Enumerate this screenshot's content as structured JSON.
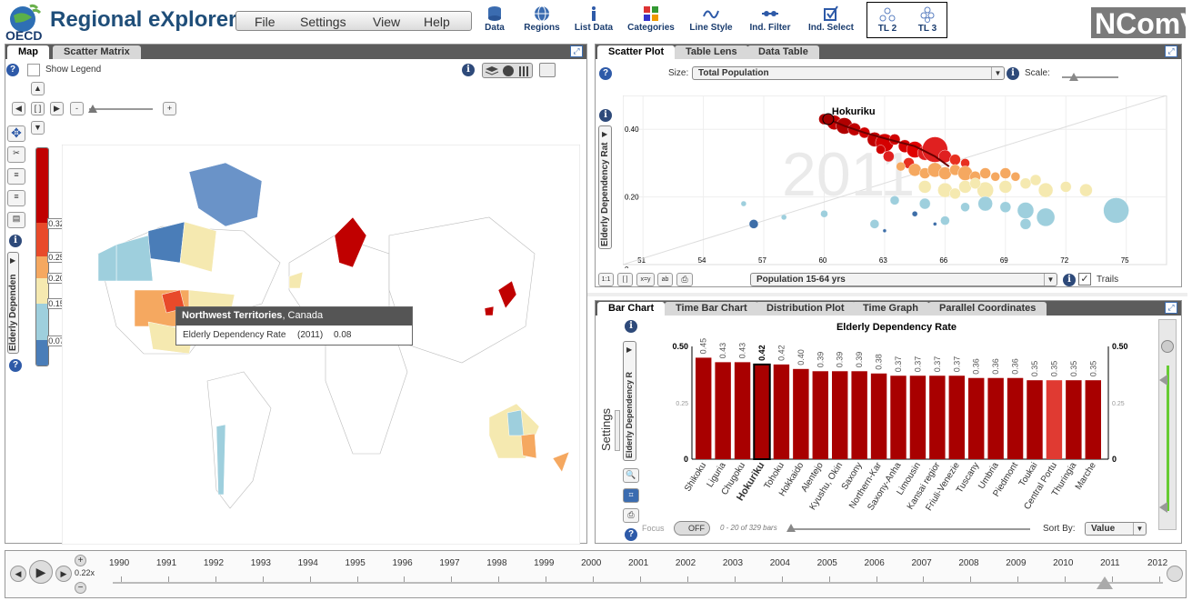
{
  "app": {
    "title": "Regional eXplorer",
    "logo_text": "OECD",
    "brand": "NComVA"
  },
  "menu": [
    "File",
    "Settings",
    "View",
    "Help"
  ],
  "toolbar": [
    {
      "label": "Data",
      "icon": "database-icon"
    },
    {
      "label": "Regions",
      "icon": "globe-icon"
    },
    {
      "label": "List Data",
      "icon": "info-icon"
    },
    {
      "label": "Categories",
      "icon": "categories-icon"
    },
    {
      "label": "Line Style",
      "icon": "line-style-icon"
    },
    {
      "label": "Ind. Filter",
      "icon": "filter-icon"
    },
    {
      "label": "Ind. Select",
      "icon": "checkbox-icon"
    },
    {
      "label": "TL 2",
      "icon": "tl2-icon"
    },
    {
      "label": "TL 3",
      "icon": "tl3-icon"
    }
  ],
  "map_panel": {
    "tabs": [
      "Map",
      "Scatter Matrix"
    ],
    "show_legend": "Show Legend",
    "indicator": "Elderly Dependen",
    "legend_ticks": [
      "0.32",
      "0.25",
      "0.20",
      "0.15",
      "0.07"
    ],
    "tooltip": {
      "region": "Northwest Territories",
      "country": ", Canada",
      "indicator": "Elderly Dependency Rate",
      "year": "(2011)",
      "value": "0.08"
    },
    "colors": [
      "#c00000",
      "#e84a2a",
      "#f5a860",
      "#f5e9b0",
      "#9ecfdd",
      "#4a7db8"
    ]
  },
  "scatter_panel": {
    "tabs": [
      "Scatter Plot",
      "Table Lens",
      "Data Table"
    ],
    "size_label": "Size:",
    "size_value": "Total Population",
    "scale_label": "Scale:",
    "y_axis_label": "Elderly Dependency Rat",
    "x_axis_value": "Population 15-64 yrs",
    "trails_label": "Trails",
    "year_watermark": "2011",
    "highlight": "Hokuriku",
    "buttons": [
      "1:1",
      "[ ]",
      "x=y",
      "ab"
    ]
  },
  "bar_panel": {
    "tabs": [
      "Bar Chart",
      "Time Bar Chart",
      "Distribution Plot",
      "Time Graph",
      "Parallel Coordinates"
    ],
    "settings_label": "Settings",
    "y_axis_label": "Elderly Dependency R",
    "focus_label": "Focus",
    "focus_toggle": "OFF",
    "bars_status": "0 - 20 of 329 bars",
    "sort_label": "Sort By:",
    "sort_value": "Value"
  },
  "timeline": {
    "speed": "0.22x",
    "years": [
      "1990",
      "1991",
      "1992",
      "1993",
      "1994",
      "1995",
      "1996",
      "1997",
      "1998",
      "1999",
      "2000",
      "2001",
      "2002",
      "2003",
      "2004",
      "2005",
      "2006",
      "2007",
      "2008",
      "2009",
      "2010",
      "2011",
      "2012"
    ],
    "current": "2011"
  },
  "chart_data": [
    {
      "type": "bar",
      "title": "Elderly Dependency Rate",
      "ylim": [
        0,
        0.5
      ],
      "y_ticks": [
        "0",
        "0.25",
        "0.50"
      ],
      "categories": [
        "Shikoku",
        "Liguria",
        "Chugoku",
        "Hokuriku",
        "Tohoku",
        "Hokkaido",
        "Alentejo",
        "Kyushu, Okin",
        "Saxony",
        "Northern-Kar",
        "Saxony-Anha",
        "Limousin",
        "Kansai regior",
        "Friuli-Venezie",
        "Tuscany",
        "Umbria",
        "Piedmont",
        "Toukai",
        "Central Portu",
        "Thuringia",
        "Marche"
      ],
      "values": [
        0.45,
        0.43,
        0.43,
        0.42,
        0.42,
        0.4,
        0.39,
        0.39,
        0.39,
        0.38,
        0.37,
        0.37,
        0.37,
        0.37,
        0.36,
        0.36,
        0.36,
        0.35,
        0.35,
        0.35,
        0.35
      ],
      "labels": [
        "0.45",
        "0.43",
        "0.43",
        "0.42",
        "0.42",
        "0.40",
        "0.39",
        "0.39",
        "0.39",
        "0.38",
        "0.37",
        "0.37",
        "0.37",
        "0.37",
        "0.36",
        "0.36",
        "0.36",
        "0.35",
        "0.35",
        "0.35",
        "0.35"
      ],
      "highlight": "Hokuriku",
      "color": "#a80000",
      "alt_color": "#e03a32"
    },
    {
      "type": "scatter",
      "xlabel": "Population 15-64 yrs",
      "ylabel": "Elderly Dependency Rat",
      "x_ticks": [
        "51",
        "54",
        "57",
        "60",
        "63",
        "66",
        "69",
        "72",
        "75"
      ],
      "y_ticks": [
        "0",
        "0.20",
        "0.40"
      ],
      "xlim": [
        50,
        77
      ],
      "ylim": [
        0,
        0.5
      ],
      "trail": [
        [
          60.2,
          0.43
        ],
        [
          61.0,
          0.41
        ],
        [
          62.0,
          0.39
        ],
        [
          63.2,
          0.37
        ],
        [
          64.5,
          0.35
        ],
        [
          65.5,
          0.32
        ],
        [
          66.2,
          0.29
        ]
      ],
      "points": [
        {
          "x": 60,
          "y": 0.43,
          "s": 6,
          "c": "#b00000"
        },
        {
          "x": 60.5,
          "y": 0.42,
          "s": 8,
          "c": "#c00000"
        },
        {
          "x": 61,
          "y": 0.41,
          "s": 9,
          "c": "#b00000"
        },
        {
          "x": 61.5,
          "y": 0.4,
          "s": 7,
          "c": "#c00000"
        },
        {
          "x": 62,
          "y": 0.39,
          "s": 6,
          "c": "#d00000"
        },
        {
          "x": 62.5,
          "y": 0.37,
          "s": 8,
          "c": "#c00000"
        },
        {
          "x": 63,
          "y": 0.36,
          "s": 10,
          "c": "#d40000"
        },
        {
          "x": 63.5,
          "y": 0.37,
          "s": 6,
          "c": "#d00000"
        },
        {
          "x": 64,
          "y": 0.35,
          "s": 7,
          "c": "#d40000"
        },
        {
          "x": 64.5,
          "y": 0.34,
          "s": 9,
          "c": "#e00000"
        },
        {
          "x": 65,
          "y": 0.33,
          "s": 8,
          "c": "#e02020"
        },
        {
          "x": 65.5,
          "y": 0.34,
          "s": 14,
          "c": "#e02020"
        },
        {
          "x": 66,
          "y": 0.32,
          "s": 7,
          "c": "#e02020"
        },
        {
          "x": 66.5,
          "y": 0.31,
          "s": 6,
          "c": "#e83020"
        },
        {
          "x": 67,
          "y": 0.3,
          "s": 5,
          "c": "#e83020"
        },
        {
          "x": 63.2,
          "y": 0.32,
          "s": 6,
          "c": "#e02020"
        },
        {
          "x": 62.8,
          "y": 0.34,
          "s": 5,
          "c": "#d00000"
        },
        {
          "x": 64.2,
          "y": 0.3,
          "s": 6,
          "c": "#e83020"
        },
        {
          "x": 64.5,
          "y": 0.28,
          "s": 7,
          "c": "#f5a860"
        },
        {
          "x": 65,
          "y": 0.27,
          "s": 6,
          "c": "#f5a860"
        },
        {
          "x": 65.5,
          "y": 0.28,
          "s": 8,
          "c": "#f5a860"
        },
        {
          "x": 66,
          "y": 0.27,
          "s": 7,
          "c": "#f5a860"
        },
        {
          "x": 66.5,
          "y": 0.28,
          "s": 6,
          "c": "#f5a860"
        },
        {
          "x": 67,
          "y": 0.27,
          "s": 8,
          "c": "#f5a860"
        },
        {
          "x": 67.5,
          "y": 0.26,
          "s": 6,
          "c": "#f5a860"
        },
        {
          "x": 68,
          "y": 0.27,
          "s": 6,
          "c": "#f5a860"
        },
        {
          "x": 68.5,
          "y": 0.26,
          "s": 5,
          "c": "#f5a860"
        },
        {
          "x": 69,
          "y": 0.27,
          "s": 6,
          "c": "#f5a860"
        },
        {
          "x": 69.5,
          "y": 0.26,
          "s": 5,
          "c": "#f5a860"
        },
        {
          "x": 63.8,
          "y": 0.29,
          "s": 5,
          "c": "#f5a860"
        },
        {
          "x": 65,
          "y": 0.23,
          "s": 7,
          "c": "#f5e9b0"
        },
        {
          "x": 66,
          "y": 0.22,
          "s": 8,
          "c": "#f5e9b0"
        },
        {
          "x": 67,
          "y": 0.23,
          "s": 7,
          "c": "#f5e9b0"
        },
        {
          "x": 68,
          "y": 0.22,
          "s": 9,
          "c": "#f5e9b0"
        },
        {
          "x": 69,
          "y": 0.23,
          "s": 7,
          "c": "#f5e9b0"
        },
        {
          "x": 70,
          "y": 0.24,
          "s": 6,
          "c": "#f5e9b0"
        },
        {
          "x": 71,
          "y": 0.22,
          "s": 8,
          "c": "#f5e9b0"
        },
        {
          "x": 72,
          "y": 0.23,
          "s": 6,
          "c": "#f5e9b0"
        },
        {
          "x": 73,
          "y": 0.22,
          "s": 7,
          "c": "#f5e9b0"
        },
        {
          "x": 70.5,
          "y": 0.25,
          "s": 6,
          "c": "#f5e9b0"
        },
        {
          "x": 67.5,
          "y": 0.24,
          "s": 6,
          "c": "#f5e9b0"
        },
        {
          "x": 66.5,
          "y": 0.21,
          "s": 6,
          "c": "#f5e9b0"
        },
        {
          "x": 63.5,
          "y": 0.19,
          "s": 5,
          "c": "#9ecfdd"
        },
        {
          "x": 65,
          "y": 0.18,
          "s": 6,
          "c": "#9ecfdd"
        },
        {
          "x": 67,
          "y": 0.17,
          "s": 5,
          "c": "#9ecfdd"
        },
        {
          "x": 68,
          "y": 0.18,
          "s": 8,
          "c": "#9ecfdd"
        },
        {
          "x": 69,
          "y": 0.17,
          "s": 6,
          "c": "#9ecfdd"
        },
        {
          "x": 70,
          "y": 0.16,
          "s": 9,
          "c": "#9ecfdd"
        },
        {
          "x": 71,
          "y": 0.14,
          "s": 10,
          "c": "#9ecfdd"
        },
        {
          "x": 70,
          "y": 0.12,
          "s": 6,
          "c": "#9ecfdd"
        },
        {
          "x": 74.5,
          "y": 0.16,
          "s": 14,
          "c": "#9ecfdd"
        },
        {
          "x": 56,
          "y": 0.18,
          "s": 3,
          "c": "#9ecfdd"
        },
        {
          "x": 58,
          "y": 0.14,
          "s": 3,
          "c": "#9ecfdd"
        },
        {
          "x": 60,
          "y": 0.15,
          "s": 4,
          "c": "#9ecfdd"
        },
        {
          "x": 62.5,
          "y": 0.12,
          "s": 5,
          "c": "#9ecfdd"
        },
        {
          "x": 66,
          "y": 0.13,
          "s": 5,
          "c": "#9ecfdd"
        },
        {
          "x": 56.5,
          "y": 0.12,
          "s": 5,
          "c": "#3d6ea8"
        },
        {
          "x": 64.5,
          "y": 0.15,
          "s": 3,
          "c": "#3d6ea8"
        },
        {
          "x": 65.5,
          "y": 0.12,
          "s": 2,
          "c": "#3d6ea8"
        },
        {
          "x": 63,
          "y": 0.1,
          "s": 2,
          "c": "#3d6ea8"
        }
      ]
    }
  ]
}
